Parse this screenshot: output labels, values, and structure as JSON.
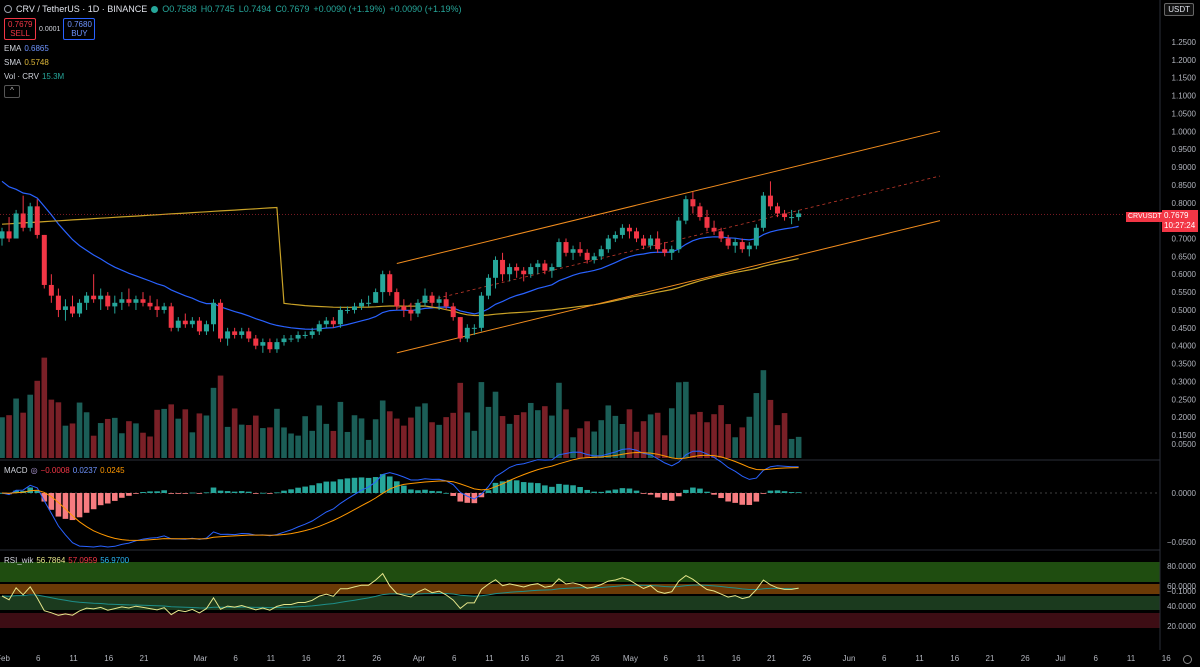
{
  "header": {
    "symbol": "CRV / TetherUS · 1D · BINANCE",
    "open": "O0.7588",
    "high": "H0.7745",
    "low": "L0.7494",
    "close": "C0.7679",
    "change": "+0.0090 (+1.19%)",
    "change2": "+0.0090 (+1.19%)"
  },
  "trade": {
    "sell_price": "0.7679",
    "sell_label": "SELL",
    "spread": "0.0001",
    "buy_price": "0.7680",
    "buy_label": "BUY"
  },
  "indicators": {
    "ema_label": "EMA",
    "ema_value": "0.6865",
    "sma_label": "SMA",
    "sma_value": "0.5748",
    "vol_label": "Vol · CRV",
    "vol_value": "15.3M",
    "macd_label": "MACD",
    "macd_hist": "−0.0008",
    "macd_line": "0.0237",
    "macd_signal": "0.0245",
    "rsi_label": "RSI_wik",
    "rsi_1": "56.7864",
    "rsi_2": "57.0959",
    "rsi_3": "56.9700"
  },
  "price_tag": {
    "symbol": "CRVUSDT",
    "price": "0.7679",
    "countdown": "10:27:24"
  },
  "currency_button": "USDT",
  "colors": {
    "up": "#26a69a",
    "down": "#f23645",
    "ema": "#2962ff",
    "sma": "#c9a227",
    "channel": "#f08c1e",
    "tag": "#f23645"
  },
  "chart_data": {
    "type": "candlestick",
    "price_axis": [
      "1.2500",
      "1.2000",
      "1.1500",
      "1.1000",
      "1.0500",
      "1.0000",
      "0.9500",
      "0.9000",
      "0.8500",
      "0.8000",
      "0.7500",
      "0.7000",
      "0.6500",
      "0.6000",
      "0.5500",
      "0.5000",
      "0.4500",
      "0.4000",
      "0.3500",
      "0.3000",
      "0.2500",
      "0.2000",
      "0.1500"
    ],
    "price_ticks": [
      1.25,
      1.2,
      1.15,
      1.1,
      1.05,
      1.0,
      0.95,
      0.9,
      0.85,
      0.8,
      0.75,
      0.7,
      0.65,
      0.6,
      0.55,
      0.5,
      0.45,
      0.4,
      0.35,
      0.3,
      0.25,
      0.2,
      0.15
    ],
    "macd_axis": [
      "0.0500",
      "0.0000",
      "−0.0500",
      "−0.1000"
    ],
    "macd_ticks": [
      0.05,
      0.0,
      -0.05,
      -0.1
    ],
    "rsi_axis": [
      "80.0000",
      "60.0000",
      "40.0000",
      "20.0000"
    ],
    "rsi_ticks": [
      80,
      60,
      40,
      20
    ],
    "time_axis": [
      "Feb",
      "6",
      "11",
      "16",
      "21",
      "Mar",
      "6",
      "11",
      "16",
      "21",
      "26",
      "Apr",
      "6",
      "11",
      "16",
      "21",
      "26",
      "May",
      "6",
      "11",
      "16",
      "21",
      "26",
      "Jun",
      "6",
      "11",
      "16",
      "21",
      "26",
      "Jul",
      "6",
      "11",
      "16"
    ],
    "time_index": [
      0,
      5,
      10,
      15,
      20,
      28,
      33,
      38,
      43,
      48,
      53,
      59,
      64,
      69,
      74,
      79,
      84,
      89,
      94,
      99,
      104,
      109,
      114,
      120,
      125,
      130,
      135,
      140,
      145,
      150,
      155,
      160,
      165
    ],
    "days": 114,
    "candles": [
      [
        0.7,
        0.73,
        0.68,
        0.72
      ],
      [
        0.72,
        0.76,
        0.69,
        0.7
      ],
      [
        0.7,
        0.78,
        0.7,
        0.77
      ],
      [
        0.77,
        0.82,
        0.72,
        0.73
      ],
      [
        0.73,
        0.8,
        0.72,
        0.79
      ],
      [
        0.79,
        0.81,
        0.7,
        0.71
      ],
      [
        0.71,
        0.71,
        0.56,
        0.57
      ],
      [
        0.57,
        0.6,
        0.52,
        0.54
      ],
      [
        0.54,
        0.56,
        0.48,
        0.5
      ],
      [
        0.5,
        0.53,
        0.47,
        0.51
      ],
      [
        0.51,
        0.54,
        0.48,
        0.49
      ],
      [
        0.49,
        0.53,
        0.48,
        0.52
      ],
      [
        0.52,
        0.55,
        0.5,
        0.54
      ],
      [
        0.54,
        0.6,
        0.52,
        0.53
      ],
      [
        0.53,
        0.56,
        0.5,
        0.54
      ],
      [
        0.54,
        0.55,
        0.5,
        0.51
      ],
      [
        0.51,
        0.54,
        0.49,
        0.52
      ],
      [
        0.52,
        0.55,
        0.5,
        0.53
      ],
      [
        0.53,
        0.56,
        0.51,
        0.52
      ],
      [
        0.52,
        0.54,
        0.5,
        0.53
      ],
      [
        0.53,
        0.55,
        0.51,
        0.52
      ],
      [
        0.52,
        0.54,
        0.5,
        0.51
      ],
      [
        0.51,
        0.53,
        0.48,
        0.5
      ],
      [
        0.5,
        0.52,
        0.49,
        0.51
      ],
      [
        0.51,
        0.52,
        0.44,
        0.45
      ],
      [
        0.45,
        0.48,
        0.44,
        0.47
      ],
      [
        0.47,
        0.49,
        0.45,
        0.46
      ],
      [
        0.46,
        0.48,
        0.45,
        0.47
      ],
      [
        0.47,
        0.48,
        0.43,
        0.44
      ],
      [
        0.44,
        0.47,
        0.43,
        0.46
      ],
      [
        0.46,
        0.53,
        0.44,
        0.52
      ],
      [
        0.52,
        0.53,
        0.41,
        0.42
      ],
      [
        0.42,
        0.45,
        0.4,
        0.44
      ],
      [
        0.44,
        0.45,
        0.42,
        0.43
      ],
      [
        0.43,
        0.45,
        0.42,
        0.44
      ],
      [
        0.44,
        0.45,
        0.41,
        0.42
      ],
      [
        0.42,
        0.43,
        0.39,
        0.4
      ],
      [
        0.4,
        0.42,
        0.38,
        0.41
      ],
      [
        0.41,
        0.42,
        0.38,
        0.39
      ],
      [
        0.39,
        0.42,
        0.38,
        0.41
      ],
      [
        0.41,
        0.43,
        0.4,
        0.42
      ],
      [
        0.42,
        0.43,
        0.41,
        0.42
      ],
      [
        0.42,
        0.44,
        0.41,
        0.43
      ],
      [
        0.43,
        0.44,
        0.42,
        0.43
      ],
      [
        0.43,
        0.45,
        0.42,
        0.44
      ],
      [
        0.44,
        0.47,
        0.43,
        0.46
      ],
      [
        0.46,
        0.48,
        0.45,
        0.47
      ],
      [
        0.47,
        0.48,
        0.45,
        0.46
      ],
      [
        0.46,
        0.51,
        0.45,
        0.5
      ],
      [
        0.5,
        0.51,
        0.49,
        0.5
      ],
      [
        0.5,
        0.52,
        0.49,
        0.51
      ],
      [
        0.51,
        0.53,
        0.5,
        0.52
      ],
      [
        0.52,
        0.54,
        0.51,
        0.52
      ],
      [
        0.52,
        0.56,
        0.52,
        0.55
      ],
      [
        0.55,
        0.61,
        0.52,
        0.6
      ],
      [
        0.6,
        0.61,
        0.54,
        0.55
      ],
      [
        0.55,
        0.56,
        0.5,
        0.51
      ],
      [
        0.51,
        0.53,
        0.48,
        0.5
      ],
      [
        0.5,
        0.52,
        0.47,
        0.49
      ],
      [
        0.49,
        0.53,
        0.48,
        0.52
      ],
      [
        0.52,
        0.56,
        0.51,
        0.54
      ],
      [
        0.54,
        0.55,
        0.51,
        0.52
      ],
      [
        0.52,
        0.54,
        0.5,
        0.53
      ],
      [
        0.53,
        0.55,
        0.5,
        0.51
      ],
      [
        0.51,
        0.52,
        0.47,
        0.48
      ],
      [
        0.48,
        0.48,
        0.41,
        0.42
      ],
      [
        0.42,
        0.46,
        0.41,
        0.45
      ],
      [
        0.45,
        0.46,
        0.43,
        0.45
      ],
      [
        0.45,
        0.55,
        0.44,
        0.54
      ],
      [
        0.54,
        0.6,
        0.53,
        0.59
      ],
      [
        0.59,
        0.65,
        0.56,
        0.64
      ],
      [
        0.64,
        0.66,
        0.58,
        0.6
      ],
      [
        0.6,
        0.63,
        0.58,
        0.62
      ],
      [
        0.62,
        0.63,
        0.59,
        0.61
      ],
      [
        0.61,
        0.62,
        0.58,
        0.6
      ],
      [
        0.6,
        0.63,
        0.59,
        0.62
      ],
      [
        0.62,
        0.64,
        0.6,
        0.63
      ],
      [
        0.63,
        0.64,
        0.6,
        0.61
      ],
      [
        0.61,
        0.63,
        0.59,
        0.62
      ],
      [
        0.62,
        0.7,
        0.62,
        0.69
      ],
      [
        0.69,
        0.7,
        0.65,
        0.66
      ],
      [
        0.66,
        0.68,
        0.64,
        0.67
      ],
      [
        0.67,
        0.69,
        0.65,
        0.66
      ],
      [
        0.66,
        0.67,
        0.63,
        0.64
      ],
      [
        0.64,
        0.66,
        0.63,
        0.65
      ],
      [
        0.65,
        0.68,
        0.64,
        0.67
      ],
      [
        0.67,
        0.71,
        0.66,
        0.7
      ],
      [
        0.7,
        0.72,
        0.69,
        0.71
      ],
      [
        0.71,
        0.74,
        0.7,
        0.73
      ],
      [
        0.73,
        0.74,
        0.7,
        0.72
      ],
      [
        0.72,
        0.73,
        0.69,
        0.7
      ],
      [
        0.7,
        0.71,
        0.67,
        0.68
      ],
      [
        0.68,
        0.71,
        0.67,
        0.7
      ],
      [
        0.7,
        0.72,
        0.66,
        0.67
      ],
      [
        0.67,
        0.69,
        0.65,
        0.66
      ],
      [
        0.66,
        0.68,
        0.64,
        0.67
      ],
      [
        0.67,
        0.76,
        0.66,
        0.75
      ],
      [
        0.75,
        0.82,
        0.74,
        0.81
      ],
      [
        0.81,
        0.83,
        0.77,
        0.79
      ],
      [
        0.79,
        0.8,
        0.75,
        0.76
      ],
      [
        0.76,
        0.78,
        0.72,
        0.73
      ],
      [
        0.73,
        0.75,
        0.71,
        0.72
      ],
      [
        0.72,
        0.73,
        0.69,
        0.7
      ],
      [
        0.7,
        0.71,
        0.67,
        0.68
      ],
      [
        0.68,
        0.7,
        0.66,
        0.69
      ],
      [
        0.69,
        0.7,
        0.66,
        0.67
      ],
      [
        0.67,
        0.69,
        0.65,
        0.68
      ],
      [
        0.68,
        0.74,
        0.67,
        0.73
      ],
      [
        0.73,
        0.83,
        0.72,
        0.82
      ],
      [
        0.82,
        0.86,
        0.78,
        0.79
      ],
      [
        0.79,
        0.8,
        0.76,
        0.77
      ],
      [
        0.77,
        0.78,
        0.75,
        0.76
      ],
      [
        0.76,
        0.78,
        0.74,
        0.76
      ],
      [
        0.76,
        0.78,
        0.75,
        0.77
      ]
    ]
  }
}
